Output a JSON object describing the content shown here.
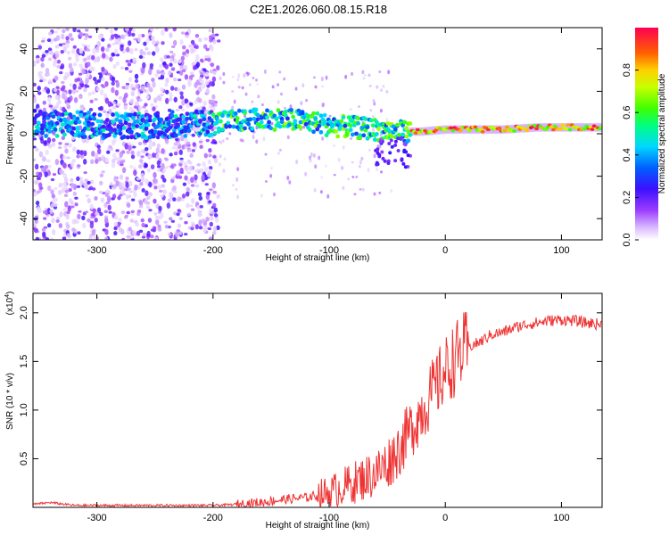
{
  "title": "C2E1.2026.060.08.15.R18",
  "chart_data": [
    {
      "type": "heatmap",
      "xlabel": "Height of straight line (km)",
      "ylabel": "Frequency (Hz)",
      "xlim": [
        -355,
        135
      ],
      "ylim": [
        -50,
        50
      ],
      "xticks": [
        -300,
        -200,
        -100,
        0,
        100
      ],
      "yticks": [
        -40,
        -20,
        0,
        20,
        40
      ],
      "colorbar": {
        "label": "Normalized spectral amplitude",
        "range": [
          0,
          1
        ],
        "ticks": [
          0.0,
          0.2,
          0.4,
          0.6,
          0.8
        ],
        "tick_labels": [
          "0.0",
          "0.2",
          "0.4",
          "0.6",
          "0.8"
        ]
      },
      "ridge": {
        "description": "dominant spectral ridge (frequency vs height)",
        "x": [
          -355,
          -300,
          -250,
          -200,
          -180,
          -150,
          -120,
          -100,
          -80,
          -60,
          -40,
          -20,
          0,
          20,
          50,
          80,
          100,
          135
        ],
        "y": [
          5,
          4,
          4,
          5,
          6,
          7,
          6,
          4,
          3,
          2,
          1,
          1,
          2,
          2,
          2,
          3,
          3,
          3
        ]
      }
    },
    {
      "type": "line",
      "xlabel": "Height of straight line (km)",
      "ylabel": "SNR (10 * v/v)",
      "y_multiplier": "(x10",
      "y_multiplier_exp": "4",
      "y_multiplier_close": ")",
      "xlim": [
        -355,
        135
      ],
      "ylim": [
        0,
        2.2
      ],
      "xticks": [
        -300,
        -200,
        -100,
        0,
        100
      ],
      "yticks": [
        0.5,
        1.0,
        1.5,
        2.0
      ],
      "ytick_labels": [
        "0.5",
        "1.0",
        "1.5",
        "2.0"
      ],
      "color": "#ee3333",
      "series": [
        {
          "name": "SNR",
          "x": [
            -355,
            -340,
            -320,
            -300,
            -250,
            -200,
            -180,
            -160,
            -140,
            -120,
            -100,
            -90,
            -80,
            -70,
            -60,
            -50,
            -40,
            -30,
            -20,
            -10,
            0,
            10,
            20,
            30,
            40,
            50,
            60,
            70,
            80,
            90,
            100,
            110,
            120,
            135
          ],
          "y": [
            0.03,
            0.05,
            0.02,
            0.02,
            0.02,
            0.02,
            0.03,
            0.05,
            0.08,
            0.1,
            0.15,
            0.2,
            0.25,
            0.3,
            0.35,
            0.45,
            0.6,
            0.8,
            1.0,
            1.2,
            1.4,
            1.55,
            1.65,
            1.7,
            1.78,
            1.8,
            1.85,
            1.88,
            1.9,
            1.92,
            1.93,
            1.92,
            1.9,
            1.88
          ]
        }
      ]
    }
  ]
}
